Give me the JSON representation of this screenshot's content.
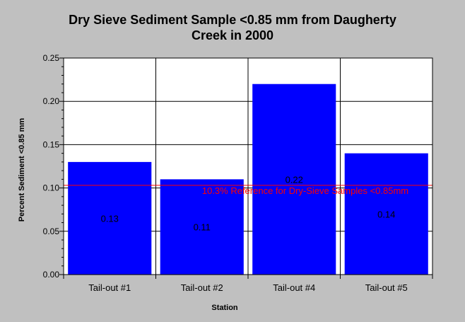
{
  "chart_data": {
    "type": "bar",
    "title_lines": [
      "Dry Sieve Sediment Sample <0.85 mm from Daugherty",
      "Creek in 2000"
    ],
    "xlabel": "Station",
    "ylabel": "Percent Sediment <0.85 mm",
    "categories": [
      "Tail-out #1",
      "Tail-out #2",
      "Tail-out #4",
      "Tail-out #5"
    ],
    "values": [
      0.13,
      0.11,
      0.22,
      0.14
    ],
    "data_labels": [
      "0.13",
      "0.11",
      "0.22",
      "0.14"
    ],
    "ylim": [
      0,
      0.25
    ],
    "yticks": [
      0.0,
      0.05,
      0.1,
      0.15,
      0.2,
      0.25
    ],
    "ytick_labels": [
      "0.00",
      "0.05",
      "0.10",
      "0.15",
      "0.20",
      "0.25"
    ],
    "grid": true,
    "bar_color": "#0000ff",
    "reference_line": {
      "value": 0.103,
      "label": "10.3% Reference for Dry-Sieve Samples <0.85mm",
      "color": "#ff0000"
    },
    "background_color": "#c0c0c0",
    "plot_background": "#ffffff"
  }
}
